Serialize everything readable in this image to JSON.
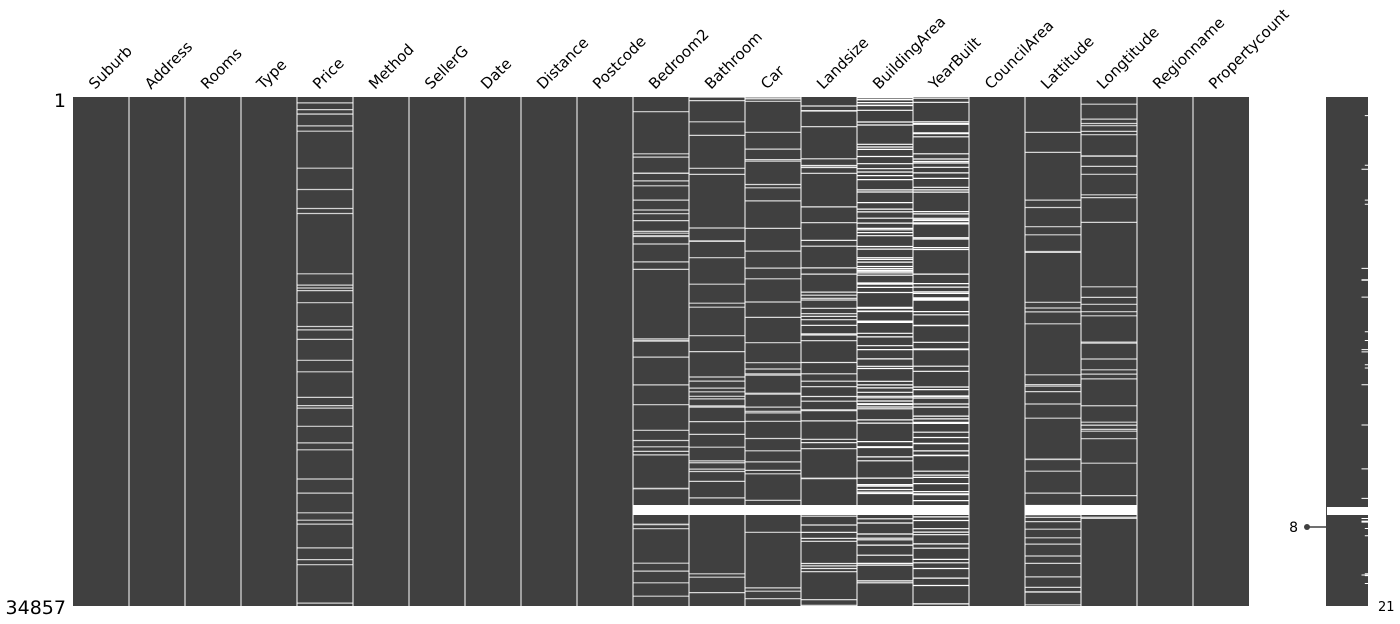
{
  "chart_data": {
    "type": "heatmap",
    "subtype": "missingno-matrix",
    "row_top_label": "1",
    "row_bottom_label": "34857",
    "columns": [
      "Suburb",
      "Address",
      "Rooms",
      "Type",
      "Price",
      "Method",
      "SellerG",
      "Date",
      "Distance",
      "Postcode",
      "Bedroom2",
      "Bathroom",
      "Car",
      "Landsize",
      "BuildingArea",
      "YearBuilt",
      "CouncilArea",
      "Lattitude",
      "Longtitude",
      "Regionname",
      "Propertycount"
    ],
    "missing_density": [
      0,
      0,
      0,
      0,
      0.22,
      0,
      0,
      0,
      0,
      0,
      0.24,
      0.24,
      0.25,
      0.34,
      0.6,
      0.55,
      0,
      0.23,
      0.23,
      0,
      0
    ],
    "sparkline": {
      "min_complete": 8,
      "max_complete": 21,
      "min_label": "8",
      "max_label": "21"
    },
    "colors": {
      "present": "#404040",
      "missing": "#ffffff"
    }
  }
}
